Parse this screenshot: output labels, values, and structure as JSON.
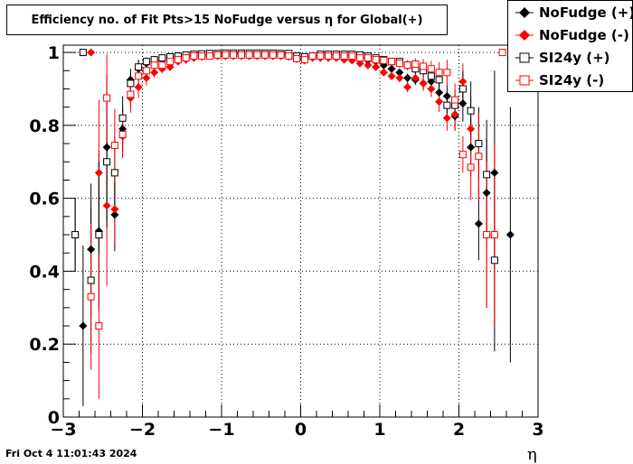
{
  "title": "Efficiency no. of Fit Pts>15 NoFudge versus η for Global(+)",
  "timestamp": "Fri Oct  4 11:01:43 2024",
  "chart_data": {
    "type": "scatter",
    "title": "Efficiency no. of Fit Pts>15 NoFudge versus η for Global(+)",
    "xlabel": "η",
    "ylabel": "",
    "xlim": [
      -3,
      3
    ],
    "ylim": [
      0,
      1.02
    ],
    "x_ticks": [
      "−3",
      "−2",
      "−1",
      "0",
      "1",
      "2",
      "3"
    ],
    "y_ticks": [
      "0",
      "0.2",
      "0.4",
      "0.6",
      "0.8",
      "1"
    ],
    "grid": true,
    "legend_position": "top-right",
    "series": [
      {
        "name": "NoFudge (+)",
        "color": "#000000",
        "marker": "filled-diamond",
        "points": [
          [
            -2.85,
            0.5,
            0.1
          ],
          [
            -2.75,
            0.25,
            0.22
          ],
          [
            -2.65,
            0.46,
            0.18
          ],
          [
            -2.55,
            0.51,
            0.22
          ],
          [
            -2.45,
            0.74,
            0.2
          ],
          [
            -2.35,
            0.555,
            0.1
          ],
          [
            -2.25,
            0.79,
            0.06
          ],
          [
            -2.15,
            0.925,
            0.03
          ],
          [
            -2.05,
            0.955,
            0.02
          ],
          [
            -1.95,
            0.97,
            0.012
          ],
          [
            -1.85,
            0.975,
            0.01
          ],
          [
            -1.75,
            0.98,
            0.008
          ],
          [
            -1.65,
            0.985,
            0.006
          ],
          [
            -1.55,
            0.99,
            0.005
          ],
          [
            -1.45,
            0.99,
            0.004
          ],
          [
            -1.35,
            0.992,
            0.004
          ],
          [
            -1.25,
            0.993,
            0.003
          ],
          [
            -1.15,
            0.994,
            0.003
          ],
          [
            -1.05,
            0.995,
            0.003
          ],
          [
            -0.95,
            0.996,
            0.002
          ],
          [
            -0.85,
            0.996,
            0.002
          ],
          [
            -0.75,
            0.997,
            0.002
          ],
          [
            -0.65,
            0.997,
            0.002
          ],
          [
            -0.55,
            0.997,
            0.002
          ],
          [
            -0.45,
            0.996,
            0.002
          ],
          [
            -0.35,
            0.996,
            0.002
          ],
          [
            -0.25,
            0.995,
            0.002
          ],
          [
            -0.15,
            0.995,
            0.002
          ],
          [
            -0.05,
            0.985,
            0.003
          ],
          [
            0.05,
            0.985,
            0.003
          ],
          [
            0.15,
            0.99,
            0.003
          ],
          [
            0.25,
            0.992,
            0.003
          ],
          [
            0.35,
            0.993,
            0.003
          ],
          [
            0.45,
            0.993,
            0.003
          ],
          [
            0.55,
            0.993,
            0.003
          ],
          [
            0.65,
            0.99,
            0.003
          ],
          [
            0.75,
            0.985,
            0.004
          ],
          [
            0.85,
            0.978,
            0.005
          ],
          [
            0.95,
            0.975,
            0.006
          ],
          [
            1.05,
            0.965,
            0.007
          ],
          [
            1.15,
            0.955,
            0.008
          ],
          [
            1.25,
            0.945,
            0.01
          ],
          [
            1.35,
            0.93,
            0.012
          ],
          [
            1.45,
            0.925,
            0.014
          ],
          [
            1.55,
            0.915,
            0.016
          ],
          [
            1.65,
            0.92,
            0.02
          ],
          [
            1.75,
            0.89,
            0.025
          ],
          [
            1.85,
            0.88,
            0.03
          ],
          [
            1.95,
            0.825,
            0.04
          ],
          [
            2.05,
            0.86,
            0.05
          ],
          [
            2.15,
            0.74,
            0.08
          ],
          [
            2.25,
            0.53,
            0.1
          ],
          [
            2.35,
            0.615,
            0.15
          ],
          [
            2.45,
            0.67,
            0.28
          ],
          [
            2.65,
            0.5,
            0.35
          ]
        ]
      },
      {
        "name": "NoFudge (-)",
        "color": "#ff0000",
        "marker": "filled-diamond",
        "points": [
          [
            -2.65,
            1.0,
            0
          ],
          [
            -2.55,
            0.67,
            0.2
          ],
          [
            -2.45,
            0.58,
            0.22
          ],
          [
            -2.35,
            0.57,
            0.1
          ],
          [
            -2.25,
            0.77,
            0.06
          ],
          [
            -2.15,
            0.875,
            0.04
          ],
          [
            -2.05,
            0.905,
            0.03
          ],
          [
            -1.95,
            0.93,
            0.02
          ],
          [
            -1.85,
            0.945,
            0.015
          ],
          [
            -1.75,
            0.955,
            0.012
          ],
          [
            -1.65,
            0.96,
            0.01
          ],
          [
            -1.55,
            0.975,
            0.008
          ],
          [
            -1.45,
            0.98,
            0.006
          ],
          [
            -1.35,
            0.985,
            0.005
          ],
          [
            -1.25,
            0.988,
            0.004
          ],
          [
            -1.15,
            0.99,
            0.004
          ],
          [
            -1.05,
            0.99,
            0.003
          ],
          [
            -0.95,
            0.99,
            0.003
          ],
          [
            -0.85,
            0.99,
            0.003
          ],
          [
            -0.75,
            0.99,
            0.003
          ],
          [
            -0.65,
            0.99,
            0.003
          ],
          [
            -0.55,
            0.99,
            0.003
          ],
          [
            -0.45,
            0.99,
            0.003
          ],
          [
            -0.35,
            0.99,
            0.003
          ],
          [
            -0.25,
            0.99,
            0.003
          ],
          [
            -0.15,
            0.988,
            0.003
          ],
          [
            -0.05,
            0.982,
            0.003
          ],
          [
            0.05,
            0.978,
            0.003
          ],
          [
            0.15,
            0.985,
            0.003
          ],
          [
            0.25,
            0.985,
            0.003
          ],
          [
            0.35,
            0.985,
            0.003
          ],
          [
            0.45,
            0.985,
            0.003
          ],
          [
            0.55,
            0.98,
            0.004
          ],
          [
            0.65,
            0.978,
            0.004
          ],
          [
            0.75,
            0.97,
            0.005
          ],
          [
            0.85,
            0.965,
            0.006
          ],
          [
            0.95,
            0.96,
            0.007
          ],
          [
            1.05,
            0.945,
            0.008
          ],
          [
            1.15,
            0.935,
            0.01
          ],
          [
            1.25,
            0.93,
            0.012
          ],
          [
            1.35,
            0.905,
            0.014
          ],
          [
            1.45,
            0.93,
            0.016
          ],
          [
            1.55,
            0.915,
            0.02
          ],
          [
            1.65,
            0.9,
            0.022
          ],
          [
            1.75,
            0.865,
            0.028
          ],
          [
            1.85,
            0.82,
            0.035
          ],
          [
            1.95,
            0.83,
            0.045
          ],
          [
            2.05,
            0.92,
            0.05
          ],
          [
            2.15,
            0.79,
            0.09
          ],
          [
            2.25,
            0.715,
            0.12
          ],
          [
            2.35,
            0.5,
            0.2
          ],
          [
            2.45,
            0.5,
            0.25
          ]
        ]
      },
      {
        "name": "SI24y (+)",
        "color": "#000000",
        "marker": "open-square",
        "points": [
          [
            -2.85,
            0.5,
            0.1
          ],
          [
            -2.75,
            1.0,
            0
          ],
          [
            -2.65,
            0.375,
            0.2
          ],
          [
            -2.55,
            0.5,
            0.2
          ],
          [
            -2.45,
            0.7,
            0.18
          ],
          [
            -2.35,
            0.67,
            0.1
          ],
          [
            -2.25,
            0.82,
            0.06
          ],
          [
            -2.15,
            0.915,
            0.03
          ],
          [
            -2.05,
            0.96,
            0.02
          ],
          [
            -1.95,
            0.975,
            0.012
          ],
          [
            -1.85,
            0.98,
            0.01
          ],
          [
            -1.75,
            0.985,
            0.008
          ],
          [
            -1.65,
            0.988,
            0.006
          ],
          [
            -1.55,
            0.99,
            0.005
          ],
          [
            -1.45,
            0.993,
            0.004
          ],
          [
            -1.35,
            0.995,
            0.004
          ],
          [
            -1.25,
            0.996,
            0.003
          ],
          [
            -1.15,
            0.997,
            0.003
          ],
          [
            -1.05,
            0.997,
            0.003
          ],
          [
            -0.95,
            0.998,
            0.002
          ],
          [
            -0.85,
            0.998,
            0.002
          ],
          [
            -0.75,
            0.998,
            0.002
          ],
          [
            -0.65,
            0.998,
            0.002
          ],
          [
            -0.55,
            0.998,
            0.002
          ],
          [
            -0.45,
            0.998,
            0.002
          ],
          [
            -0.35,
            0.998,
            0.002
          ],
          [
            -0.25,
            0.997,
            0.002
          ],
          [
            -0.15,
            0.997,
            0.002
          ],
          [
            -0.05,
            0.99,
            0.003
          ],
          [
            0.05,
            0.988,
            0.003
          ],
          [
            0.15,
            0.99,
            0.003
          ],
          [
            0.25,
            0.995,
            0.003
          ],
          [
            0.35,
            0.995,
            0.003
          ],
          [
            0.45,
            0.995,
            0.003
          ],
          [
            0.55,
            0.995,
            0.003
          ],
          [
            0.65,
            0.995,
            0.003
          ],
          [
            0.75,
            0.993,
            0.004
          ],
          [
            0.85,
            0.99,
            0.005
          ],
          [
            0.95,
            0.985,
            0.006
          ],
          [
            1.05,
            0.98,
            0.007
          ],
          [
            1.15,
            0.975,
            0.008
          ],
          [
            1.25,
            0.975,
            0.01
          ],
          [
            1.35,
            0.965,
            0.012
          ],
          [
            1.45,
            0.955,
            0.014
          ],
          [
            1.55,
            0.95,
            0.016
          ],
          [
            1.65,
            0.935,
            0.02
          ],
          [
            1.75,
            0.925,
            0.025
          ],
          [
            1.85,
            0.855,
            0.03
          ],
          [
            1.95,
            0.855,
            0.04
          ],
          [
            2.05,
            0.9,
            0.05
          ],
          [
            2.15,
            0.84,
            0.08
          ],
          [
            2.25,
            0.75,
            0.1
          ],
          [
            2.35,
            0.665,
            0.15
          ],
          [
            2.45,
            0.43,
            0.25
          ]
        ]
      },
      {
        "name": "SI24y (-)",
        "color": "#ff0000",
        "marker": "open-square",
        "points": [
          [
            -2.65,
            0.33,
            0.2
          ],
          [
            -2.55,
            0.25,
            0.2
          ],
          [
            -2.45,
            0.875,
            0.12
          ],
          [
            -2.35,
            0.745,
            0.1
          ],
          [
            -2.25,
            0.775,
            0.06
          ],
          [
            -2.15,
            0.885,
            0.04
          ],
          [
            -2.05,
            0.935,
            0.03
          ],
          [
            -1.95,
            0.95,
            0.02
          ],
          [
            -1.85,
            0.965,
            0.015
          ],
          [
            -1.75,
            0.965,
            0.012
          ],
          [
            -1.65,
            0.975,
            0.01
          ],
          [
            -1.55,
            0.98,
            0.008
          ],
          [
            -1.45,
            0.985,
            0.006
          ],
          [
            -1.35,
            0.99,
            0.005
          ],
          [
            -1.25,
            0.99,
            0.004
          ],
          [
            -1.15,
            0.99,
            0.004
          ],
          [
            -1.05,
            0.993,
            0.003
          ],
          [
            -0.95,
            0.993,
            0.003
          ],
          [
            -0.85,
            0.993,
            0.003
          ],
          [
            -0.75,
            0.993,
            0.003
          ],
          [
            -0.65,
            0.993,
            0.003
          ],
          [
            -0.55,
            0.993,
            0.003
          ],
          [
            -0.45,
            0.993,
            0.003
          ],
          [
            -0.35,
            0.993,
            0.003
          ],
          [
            -0.25,
            0.993,
            0.003
          ],
          [
            -0.15,
            0.99,
            0.003
          ],
          [
            -0.05,
            0.983,
            0.003
          ],
          [
            0.05,
            0.98,
            0.003
          ],
          [
            0.15,
            0.99,
            0.003
          ],
          [
            0.25,
            0.99,
            0.003
          ],
          [
            0.35,
            0.99,
            0.003
          ],
          [
            0.45,
            0.99,
            0.003
          ],
          [
            0.55,
            0.99,
            0.004
          ],
          [
            0.65,
            0.99,
            0.004
          ],
          [
            0.75,
            0.985,
            0.005
          ],
          [
            0.85,
            0.985,
            0.006
          ],
          [
            0.95,
            0.98,
            0.007
          ],
          [
            1.05,
            0.978,
            0.008
          ],
          [
            1.15,
            0.975,
            0.01
          ],
          [
            1.25,
            0.97,
            0.012
          ],
          [
            1.35,
            0.965,
            0.014
          ],
          [
            1.45,
            0.968,
            0.016
          ],
          [
            1.55,
            0.962,
            0.02
          ],
          [
            1.65,
            0.955,
            0.022
          ],
          [
            1.75,
            0.945,
            0.028
          ],
          [
            1.85,
            0.945,
            0.035
          ],
          [
            1.95,
            0.87,
            0.045
          ],
          [
            2.05,
            0.72,
            0.05
          ],
          [
            2.15,
            0.685,
            0.09
          ],
          [
            2.25,
            0.715,
            0.12
          ],
          [
            2.35,
            0.5,
            0.2
          ],
          [
            2.45,
            0.5,
            0.25
          ],
          [
            2.55,
            1.0,
            0
          ]
        ]
      }
    ]
  }
}
